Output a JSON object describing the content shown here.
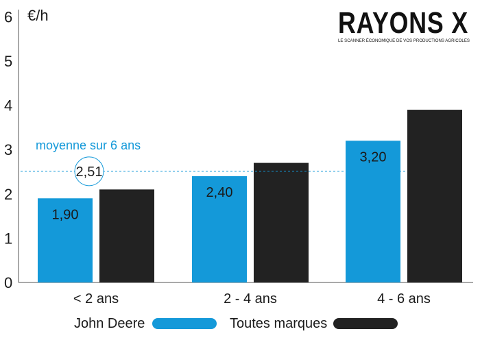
{
  "logo": {
    "title": "RAYONS X",
    "subtitle": "LE SCANNER ÉCONOMIQUE DE VOS PRODUCTIONS AGRICOLES"
  },
  "colors": {
    "john_deere": "#1499d9",
    "toutes_marques": "#222222",
    "average": "#1499d9",
    "axis": "#555555"
  },
  "chart_data": {
    "type": "bar",
    "ylabel": "€/h",
    "ylim": [
      0,
      6
    ],
    "yticks": [
      "0",
      "1",
      "2",
      "3",
      "4",
      "5",
      "6"
    ],
    "categories": [
      "< 2 ans",
      "2 - 4 ans",
      "4 - 6 ans"
    ],
    "series": [
      {
        "name": "John Deere",
        "values": [
          1.9,
          2.4,
          3.2
        ],
        "labels": [
          "1,90",
          "2,40",
          "3,20"
        ]
      },
      {
        "name": "Toutes marques",
        "values": [
          2.1,
          2.7,
          3.9
        ]
      }
    ],
    "average": {
      "label": "moyenne sur 6 ans",
      "value": 2.51,
      "value_label": "2,51"
    },
    "legend_position": "bottom",
    "grid": false
  }
}
